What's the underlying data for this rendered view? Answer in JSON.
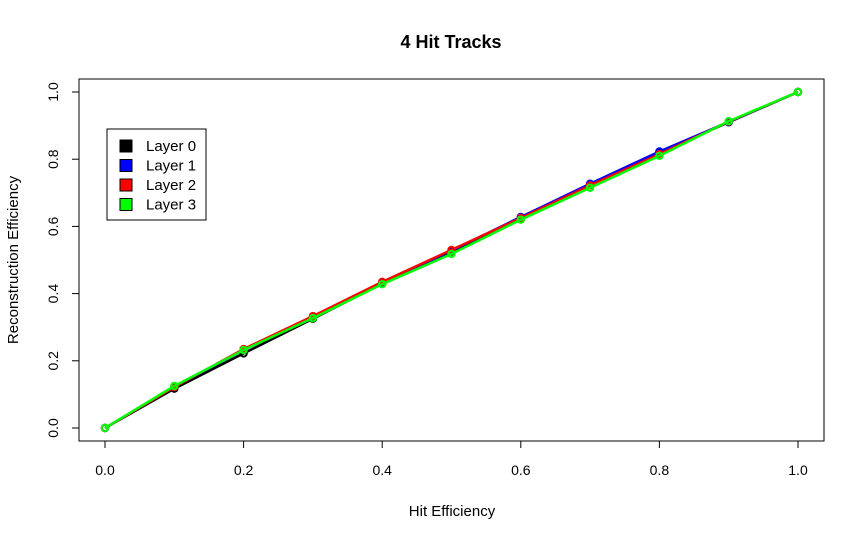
{
  "chart_data": {
    "type": "line",
    "title": "4 Hit Tracks",
    "xlabel": "Hit Efficiency",
    "ylabel": "Reconstruction Efficiency",
    "xlim": [
      0,
      1
    ],
    "ylim": [
      0,
      1
    ],
    "x_ticks": [
      "0.0",
      "0.2",
      "0.4",
      "0.6",
      "0.8",
      "1.0"
    ],
    "y_ticks": [
      "0.0",
      "0.2",
      "0.4",
      "0.6",
      "0.8",
      "1.0"
    ],
    "grid": false,
    "legend_position": "top-left",
    "x": [
      0.0,
      0.1,
      0.2,
      0.3,
      0.4,
      0.5,
      0.6,
      0.7,
      0.8,
      0.9,
      1.0
    ],
    "series": [
      {
        "name": "Layer 0",
        "color": "#000000",
        "values": [
          0.0,
          0.117,
          0.222,
          0.325,
          0.43,
          0.525,
          0.625,
          0.725,
          0.82,
          0.91,
          1.0
        ]
      },
      {
        "name": "Layer 1",
        "color": "#0000ff",
        "values": [
          0.0,
          0.122,
          0.232,
          0.33,
          0.433,
          0.528,
          0.628,
          0.727,
          0.823,
          0.911,
          1.0
        ]
      },
      {
        "name": "Layer 2",
        "color": "#ff0000",
        "values": [
          0.0,
          0.122,
          0.235,
          0.333,
          0.435,
          0.53,
          0.625,
          0.722,
          0.815,
          0.912,
          1.0
        ]
      },
      {
        "name": "Layer 3",
        "color": "#00ff00",
        "values": [
          0.0,
          0.125,
          0.232,
          0.327,
          0.428,
          0.518,
          0.62,
          0.715,
          0.81,
          0.913,
          1.0
        ]
      }
    ]
  }
}
